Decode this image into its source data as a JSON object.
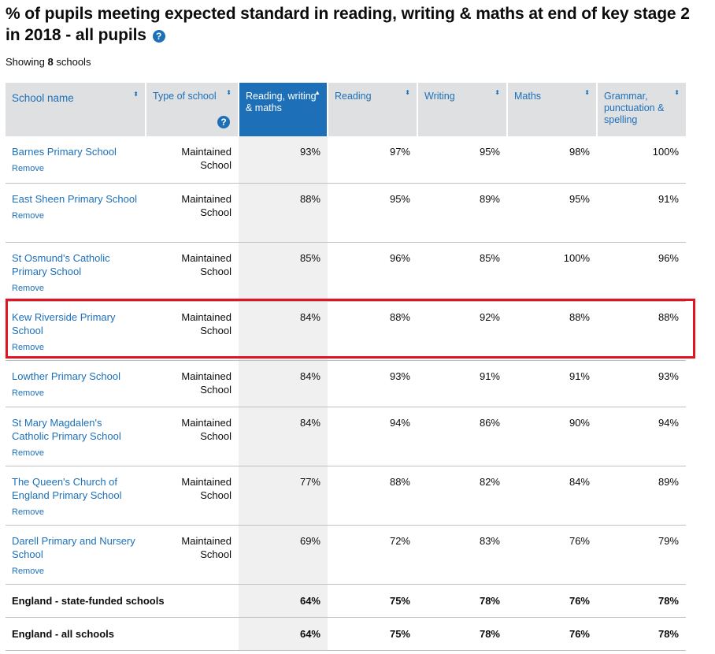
{
  "title": "% of pupils meeting expected standard in reading, writing & maths at end of key stage 2 in 2018 - all pupils",
  "help_icon_label": "?",
  "showing": {
    "prefix": "Showing",
    "count": "8",
    "suffix": "schools"
  },
  "columns": [
    {
      "label": "School name",
      "sort": "⬍"
    },
    {
      "label": "Type of school",
      "sort": "⬍",
      "help": "?"
    },
    {
      "label": "Reading, writing & maths",
      "sort": "▲"
    },
    {
      "label": "Reading",
      "sort": "⬍"
    },
    {
      "label": "Writing",
      "sort": "⬍"
    },
    {
      "label": "Maths",
      "sort": "⬍"
    },
    {
      "label": "Grammar, punctuation & spelling",
      "sort": "⬍"
    }
  ],
  "remove_label": "Remove",
  "schools": [
    {
      "name": "Barnes Primary School",
      "type": "Maintained School",
      "rwm": "93%",
      "reading": "97%",
      "writing": "95%",
      "maths": "98%",
      "gps": "100%"
    },
    {
      "name": "East Sheen Primary School",
      "type": "Maintained School",
      "rwm": "88%",
      "reading": "95%",
      "writing": "89%",
      "maths": "95%",
      "gps": "91%"
    },
    {
      "name": "St Osmund's Catholic Primary School",
      "type": "Maintained School",
      "rwm": "85%",
      "reading": "96%",
      "writing": "85%",
      "maths": "100%",
      "gps": "96%"
    },
    {
      "name": "Kew Riverside Primary School",
      "type": "Maintained School",
      "rwm": "84%",
      "reading": "88%",
      "writing": "92%",
      "maths": "88%",
      "gps": "88%"
    },
    {
      "name": "Lowther Primary School",
      "type": "Maintained School",
      "rwm": "84%",
      "reading": "93%",
      "writing": "91%",
      "maths": "91%",
      "gps": "93%"
    },
    {
      "name": "St Mary Magdalen's Catholic Primary School",
      "type": "Maintained School",
      "rwm": "84%",
      "reading": "94%",
      "writing": "86%",
      "maths": "90%",
      "gps": "94%"
    },
    {
      "name": "The Queen's Church of England Primary School",
      "type": "Maintained School",
      "rwm": "77%",
      "reading": "88%",
      "writing": "82%",
      "maths": "84%",
      "gps": "89%"
    },
    {
      "name": "Darell Primary and Nursery School",
      "type": "Maintained School",
      "rwm": "69%",
      "reading": "72%",
      "writing": "83%",
      "maths": "76%",
      "gps": "79%"
    }
  ],
  "totals": [
    {
      "name": "England - state-funded schools",
      "rwm": "64%",
      "reading": "75%",
      "writing": "78%",
      "maths": "76%",
      "gps": "78%"
    },
    {
      "name": "England - all schools",
      "rwm": "64%",
      "reading": "75%",
      "writing": "78%",
      "maths": "76%",
      "gps": "78%"
    }
  ],
  "colors": {
    "link": "#1d70b8",
    "header_bg": "#dee0e2",
    "sorted_bg": "#1d70b8",
    "highlight": "#e2141f",
    "shade": "#f0f0f0"
  }
}
